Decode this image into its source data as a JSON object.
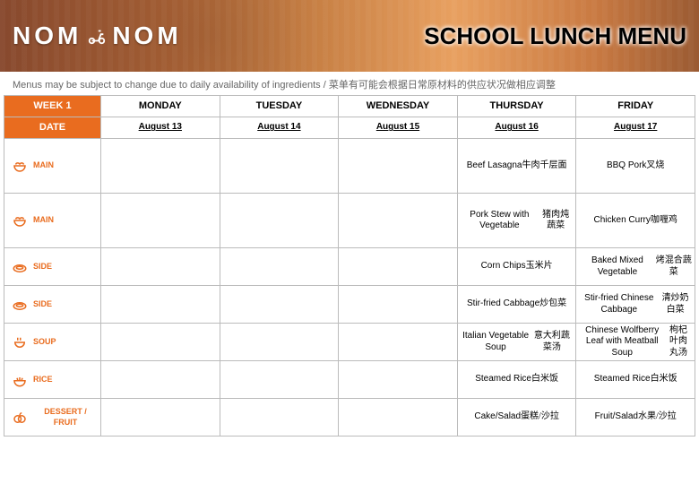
{
  "brand": "NOM NOM",
  "title": "SCHOOL LUNCH MENU",
  "subtitle": "Menus may be subject to change due to daily availability of ingredients / 菜单有可能会根据日常原材料的供应状况做相应调整",
  "colors": {
    "accent": "#e96c1f",
    "border": "#bbbbbb",
    "text": "#333333"
  },
  "headers": {
    "week": "WEEK 1",
    "date": "DATE",
    "days": [
      "MONDAY",
      "TUESDAY",
      "WEDNESDAY",
      "THURSDAY",
      "FRIDAY"
    ]
  },
  "dates": [
    "August 13",
    "August 14",
    "August 15",
    "August 16",
    "August 17"
  ],
  "rows": [
    {
      "label": "MAIN",
      "icon": "bowl",
      "cells": [
        {
          "en": "",
          "zh": ""
        },
        {
          "en": "",
          "zh": ""
        },
        {
          "en": "",
          "zh": ""
        },
        {
          "en": "Beef Lasagna",
          "zh": "牛肉千层面"
        },
        {
          "en": "BBQ Pork",
          "zh": "叉烧"
        }
      ]
    },
    {
      "label": "MAIN",
      "icon": "bowl",
      "cells": [
        {
          "en": "",
          "zh": ""
        },
        {
          "en": "",
          "zh": ""
        },
        {
          "en": "",
          "zh": ""
        },
        {
          "en": "Pork Stew with Vegetable",
          "zh": "猪肉炖蔬菜"
        },
        {
          "en": "Chicken Curry",
          "zh": "咖喱鸡"
        }
      ]
    },
    {
      "label": "SIDE",
      "icon": "plate",
      "cells": [
        {
          "en": "",
          "zh": ""
        },
        {
          "en": "",
          "zh": ""
        },
        {
          "en": "",
          "zh": ""
        },
        {
          "en": "Corn Chips",
          "zh": "玉米片"
        },
        {
          "en": "Baked Mixed Vegetable",
          "zh": "烤混合蔬菜"
        }
      ]
    },
    {
      "label": "SIDE",
      "icon": "plate",
      "cells": [
        {
          "en": "",
          "zh": ""
        },
        {
          "en": "",
          "zh": ""
        },
        {
          "en": "",
          "zh": ""
        },
        {
          "en": "Stir-fried Cabbage",
          "zh": "炒包菜"
        },
        {
          "en": "Stir-fried Chinese Cabbage",
          "zh": "清炒奶白菜"
        }
      ]
    },
    {
      "label": "SOUP",
      "icon": "soup",
      "cells": [
        {
          "en": "",
          "zh": ""
        },
        {
          "en": "",
          "zh": ""
        },
        {
          "en": "",
          "zh": ""
        },
        {
          "en": "Italian Vegetable Soup",
          "zh": "意大利蔬菜汤"
        },
        {
          "en": "Chinese Wolfberry Leaf with Meatball Soup",
          "zh": "枸杞叶肉丸汤"
        }
      ]
    },
    {
      "label": "RICE",
      "icon": "rice",
      "cells": [
        {
          "en": "",
          "zh": ""
        },
        {
          "en": "",
          "zh": ""
        },
        {
          "en": "",
          "zh": ""
        },
        {
          "en": "Steamed Rice",
          "zh": "白米饭"
        },
        {
          "en": "Steamed Rice",
          "zh": "白米饭"
        }
      ]
    },
    {
      "label": "DESSERT / FRUIT",
      "icon": "fruit",
      "cells": [
        {
          "en": "",
          "zh": ""
        },
        {
          "en": "",
          "zh": ""
        },
        {
          "en": "",
          "zh": ""
        },
        {
          "en": "Cake/Salad",
          "zh": "蛋糕/沙拉"
        },
        {
          "en": "Fruit/Salad",
          "zh": "水果/沙拉"
        }
      ]
    }
  ]
}
